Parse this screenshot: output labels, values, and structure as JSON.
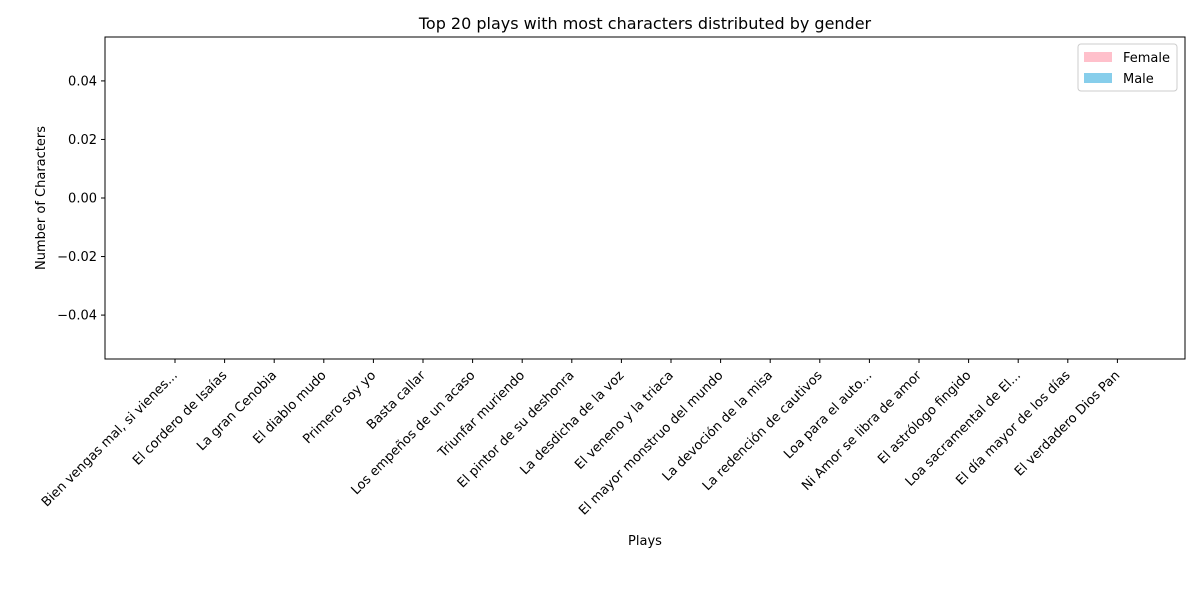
{
  "chart_data": {
    "type": "bar",
    "stacked": true,
    "title": "Top 20 plays with most characters distributed by gender",
    "xlabel": "Plays",
    "ylabel": "Number of Characters",
    "categories": [
      "Bien vengas mal, si vienes...",
      "El cordero de Isaías",
      "La gran Cenobia",
      "El diablo mudo",
      "Primero soy yo",
      "Basta callar",
      "Los empeños de un acaso",
      "Triunfar muriendo",
      "El pintor de su deshonra",
      "La desdicha de la voz",
      "El veneno y la triaca",
      "El mayor monstruo del mundo",
      "La devoción de la misa",
      "La redención de cautivos",
      "Loa para el auto...",
      "Ni Amor se libra de amor",
      "El astrólogo fingido",
      "Loa sacramental de El...",
      "El día mayor de los días",
      "El verdadero Dios Pan"
    ],
    "series": [
      {
        "name": "Female",
        "color": "#ffc0cb",
        "values": [
          0,
          0,
          0,
          0,
          0,
          0,
          0,
          0,
          0,
          0,
          0,
          0,
          0,
          0,
          0,
          0,
          0,
          0,
          0,
          0
        ]
      },
      {
        "name": "Male",
        "color": "#87ceeb",
        "values": [
          0,
          0,
          0,
          0,
          0,
          0,
          0,
          0,
          0,
          0,
          0,
          0,
          0,
          0,
          0,
          0,
          0,
          0,
          0,
          0
        ]
      }
    ],
    "ylim": [
      -0.055,
      0.055
    ],
    "yticks": [
      "0.04",
      "0.02",
      "0.00",
      "−0.02",
      "−0.04"
    ],
    "ytick_values": [
      0.04,
      0.02,
      0.0,
      -0.02,
      -0.04
    ],
    "grid": false,
    "legend_position": "top-right"
  }
}
